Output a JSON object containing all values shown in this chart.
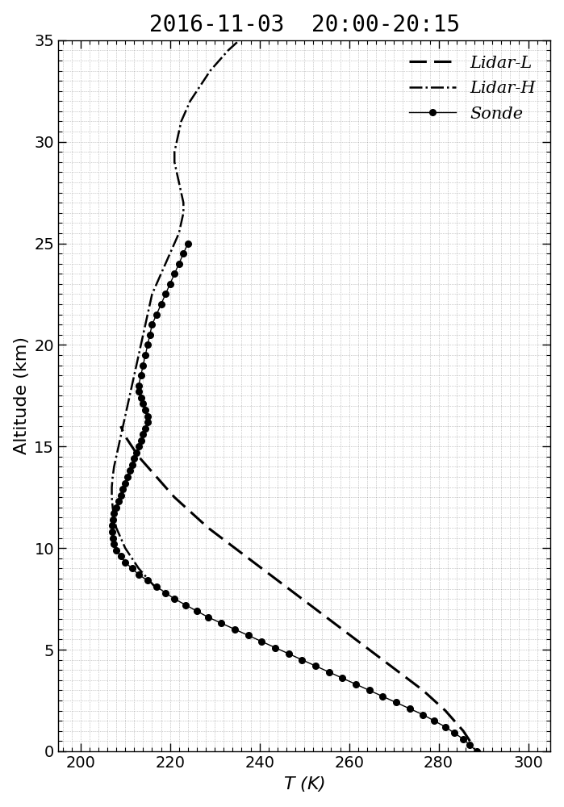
{
  "title": "2016-11-03  20:00-20:15",
  "xlabel": "$T$ (K)",
  "ylabel": "Altitude (km)",
  "xlim": [
    195,
    305
  ],
  "ylim": [
    0,
    35
  ],
  "xticks": [
    200,
    220,
    240,
    260,
    280,
    300
  ],
  "yticks": [
    0,
    5,
    10,
    15,
    20,
    25,
    30,
    35
  ],
  "legend_labels": [
    "Sonde",
    "Lidar-H",
    "Lidar-L"
  ],
  "background_color": "#ffffff",
  "title_fontsize": 20,
  "label_fontsize": 16,
  "tick_fontsize": 14,
  "sonde_alt": [
    0.0,
    0.3,
    0.6,
    0.9,
    1.2,
    1.5,
    1.8,
    2.1,
    2.4,
    2.7,
    3.0,
    3.3,
    3.6,
    3.9,
    4.2,
    4.5,
    4.8,
    5.1,
    5.4,
    5.7,
    6.0,
    6.3,
    6.6,
    6.9,
    7.2,
    7.5,
    7.8,
    8.1,
    8.4,
    8.7,
    9.0,
    9.3,
    9.6,
    9.9,
    10.2,
    10.5,
    10.8,
    11.1,
    11.4,
    11.7,
    12.0,
    12.3,
    12.6,
    12.9,
    13.2,
    13.5,
    13.8,
    14.1,
    14.4,
    14.7,
    15.0,
    15.3,
    15.6,
    15.9,
    16.2,
    16.5,
    16.8,
    17.1,
    17.4,
    17.7,
    18.0,
    18.5,
    19.0,
    19.5,
    20.0,
    20.5,
    21.0,
    21.5,
    22.0,
    22.5,
    23.0,
    23.5,
    24.0,
    24.5,
    25.0
  ],
  "sonde_temp": [
    288.5,
    287.0,
    285.5,
    283.5,
    281.5,
    279.0,
    276.5,
    273.5,
    270.5,
    267.5,
    264.5,
    261.5,
    258.5,
    255.5,
    252.5,
    249.5,
    246.5,
    243.5,
    240.5,
    237.5,
    234.5,
    231.5,
    228.5,
    226.0,
    223.5,
    221.0,
    219.0,
    217.0,
    215.0,
    213.0,
    211.5,
    210.0,
    209.0,
    208.0,
    207.5,
    207.2,
    207.0,
    207.0,
    207.2,
    207.5,
    208.0,
    208.5,
    209.0,
    209.5,
    210.0,
    210.5,
    211.0,
    211.5,
    212.0,
    212.5,
    213.0,
    213.5,
    214.0,
    214.5,
    215.0,
    215.0,
    214.5,
    214.0,
    213.5,
    213.0,
    213.0,
    213.5,
    214.0,
    214.5,
    215.0,
    215.5,
    216.0,
    217.0,
    218.0,
    219.0,
    220.0,
    221.0,
    222.0,
    223.0,
    224.0
  ],
  "lidar_h_alt": [
    8.0,
    8.5,
    9.0,
    9.5,
    10.0,
    10.5,
    11.0,
    11.5,
    12.0,
    12.5,
    13.0,
    13.5,
    14.0,
    14.5,
    15.0,
    15.5,
    16.0,
    16.5,
    17.0,
    17.5,
    18.0,
    18.5,
    19.0,
    19.5,
    20.0,
    20.5,
    21.0,
    21.5,
    22.0,
    22.5,
    23.0,
    23.5,
    24.0,
    24.5,
    25.0,
    25.5,
    26.0,
    26.5,
    27.0,
    27.5,
    28.0,
    28.5,
    29.0,
    29.5,
    30.0,
    30.5,
    31.0,
    31.5,
    32.0,
    32.5,
    33.0,
    33.5,
    34.0,
    34.5,
    35.0
  ],
  "lidar_h_temp": [
    217.0,
    215.0,
    213.0,
    211.5,
    210.0,
    209.0,
    208.0,
    207.5,
    207.2,
    207.0,
    207.0,
    207.2,
    207.5,
    208.0,
    208.5,
    209.0,
    209.5,
    210.0,
    210.5,
    211.0,
    211.5,
    212.0,
    212.5,
    213.0,
    213.5,
    214.0,
    214.5,
    215.0,
    215.5,
    216.0,
    217.0,
    218.0,
    219.0,
    220.0,
    221.0,
    222.0,
    222.5,
    223.0,
    223.0,
    222.5,
    222.0,
    221.5,
    221.0,
    221.0,
    221.5,
    222.0,
    222.5,
    223.5,
    224.5,
    226.0,
    227.5,
    229.0,
    231.0,
    233.0,
    235.5
  ],
  "lidar_l_alt": [
    0.5,
    1.0,
    1.5,
    2.0,
    2.5,
    3.0,
    3.5,
    4.0,
    4.5,
    5.0,
    5.5,
    6.0,
    6.5,
    7.0,
    7.5,
    8.0,
    8.5,
    9.0,
    9.5,
    10.0,
    10.5,
    11.0,
    11.5,
    12.0,
    12.5,
    13.0,
    13.5,
    14.0,
    14.5,
    15.0,
    15.5,
    16.0
  ],
  "lidar_l_temp": [
    287.0,
    285.5,
    283.5,
    281.5,
    279.0,
    276.5,
    273.5,
    270.5,
    267.5,
    264.5,
    261.5,
    258.5,
    255.5,
    252.5,
    249.5,
    246.5,
    243.5,
    240.5,
    237.5,
    234.5,
    231.5,
    228.5,
    226.0,
    223.5,
    221.0,
    219.0,
    217.0,
    215.0,
    213.0,
    211.5,
    210.0,
    209.0
  ]
}
